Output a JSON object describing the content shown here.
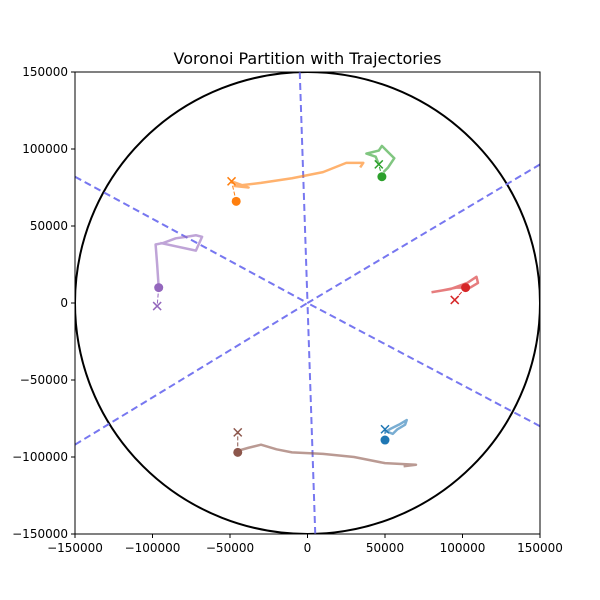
{
  "chart_data": {
    "type": "line",
    "title": "Voronoi Partition with Trajectories",
    "xlabel": "",
    "ylabel": "",
    "xlim": [
      -150000,
      150000
    ],
    "ylim": [
      -150000,
      150000
    ],
    "xticks": [
      "−150000",
      "−100000",
      "−50000",
      "0",
      "50000",
      "100000",
      "150000"
    ],
    "yticks": [
      "−150000",
      "−100000",
      "−50000",
      "0",
      "50000",
      "100000",
      "150000"
    ],
    "grid": false,
    "boundary_circle": {
      "center": [
        0,
        0
      ],
      "radius": 150000,
      "color": "#000000"
    },
    "voronoi_color": "#7777f0",
    "voronoi_edges": [
      [
        [
          -5000,
          150000
        ],
        [
          0,
          0
        ]
      ],
      [
        [
          5000,
          -150000
        ],
        [
          0,
          0
        ]
      ],
      [
        [
          -150000,
          82000
        ],
        [
          0,
          0
        ]
      ],
      [
        [
          150000,
          -80000
        ],
        [
          0,
          0
        ]
      ],
      [
        [
          150000,
          90000
        ],
        [
          0,
          0
        ]
      ],
      [
        [
          -150000,
          -92000
        ],
        [
          0,
          0
        ]
      ]
    ],
    "series": [
      {
        "color": "#1f77b4",
        "start": [
          50000,
          -89000
        ],
        "end": [
          50000,
          -82000
        ],
        "trajectory": [
          [
            50000,
            -83000
          ],
          [
            55000,
            -85000
          ],
          [
            58000,
            -82000
          ],
          [
            63000,
            -79000
          ],
          [
            64000,
            -76000
          ],
          [
            59000,
            -79000
          ],
          [
            53000,
            -82000
          ],
          [
            50000,
            -84000
          ]
        ]
      },
      {
        "color": "#ff7f0e",
        "start": [
          -46000,
          66000
        ],
        "end": [
          -49000,
          79000
        ],
        "trajectory": [
          [
            -49000,
            79000
          ],
          [
            -38000,
            75000
          ],
          [
            -47000,
            76000
          ],
          [
            -30000,
            78000
          ],
          [
            -10000,
            81000
          ],
          [
            10000,
            85000
          ],
          [
            25000,
            91000
          ],
          [
            36000,
            91000
          ],
          [
            34000,
            88000
          ]
        ]
      },
      {
        "color": "#2ca02c",
        "start": [
          48000,
          82000
        ],
        "end": [
          46000,
          90000
        ],
        "trajectory": [
          [
            46000,
            90000
          ],
          [
            44000,
            95000
          ],
          [
            38000,
            97000
          ],
          [
            46000,
            99000
          ],
          [
            48000,
            102000
          ],
          [
            52000,
            98000
          ],
          [
            56000,
            94000
          ],
          [
            52000,
            88000
          ],
          [
            49000,
            85000
          ]
        ]
      },
      {
        "color": "#d62728",
        "start": [
          102000,
          10000
        ],
        "end": [
          95000,
          2000
        ],
        "trajectory": [
          [
            80000,
            7000
          ],
          [
            92000,
            9000
          ],
          [
            103000,
            13000
          ],
          [
            109000,
            17000
          ],
          [
            110000,
            13000
          ],
          [
            105000,
            10000
          ],
          [
            96000,
            10000
          ],
          [
            86000,
            8000
          ]
        ]
      },
      {
        "color": "#9467bd",
        "start": [
          -96000,
          10000
        ],
        "end": [
          -97000,
          -2000
        ],
        "trajectory": [
          [
            -96000,
            10000
          ],
          [
            -97000,
            25000
          ],
          [
            -98000,
            38000
          ],
          [
            -93000,
            39000
          ],
          [
            -85000,
            42000
          ],
          [
            -78000,
            43000
          ],
          [
            -72000,
            44000
          ],
          [
            -68000,
            43000
          ],
          [
            -72000,
            34000
          ],
          [
            -95000,
            39000
          ]
        ]
      },
      {
        "color": "#8c564b",
        "start": [
          -45000,
          -97000
        ],
        "end": [
          -45000,
          -84000
        ],
        "trajectory": [
          [
            -45000,
            -96000
          ],
          [
            -38000,
            -94000
          ],
          [
            -30000,
            -92000
          ],
          [
            -20000,
            -95000
          ],
          [
            -10000,
            -97000
          ],
          [
            10000,
            -98000
          ],
          [
            30000,
            -100000
          ],
          [
            50000,
            -104000
          ],
          [
            70000,
            -105000
          ],
          [
            62000,
            -106000
          ]
        ]
      }
    ]
  }
}
